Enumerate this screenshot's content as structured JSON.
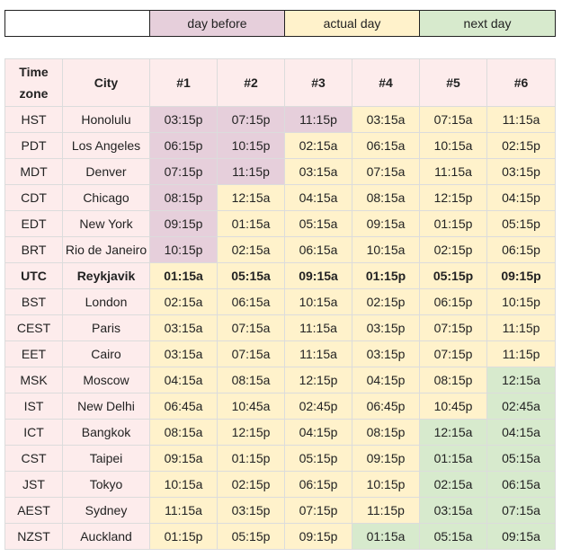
{
  "legend": {
    "blank": "",
    "day_before": "day before",
    "actual_day": "actual day",
    "next_day": "next day"
  },
  "colors": {
    "day_before": "#e6cfdb",
    "actual_day": "#fff2cb",
    "next_day": "#d7eacd",
    "header_row_bg": "#fdecec"
  },
  "table": {
    "headers": [
      "Time zone",
      "City",
      "#1",
      "#2",
      "#3",
      "#4",
      "#5",
      "#6"
    ],
    "rows": [
      {
        "tz": "HST",
        "city": "Honolulu",
        "times": [
          "03:15p",
          "07:15p",
          "11:15p",
          "03:15a",
          "07:15a",
          "11:15a"
        ],
        "days": [
          "before",
          "before",
          "before",
          "actual",
          "actual",
          "actual"
        ]
      },
      {
        "tz": "PDT",
        "city": "Los Angeles",
        "times": [
          "06:15p",
          "10:15p",
          "02:15a",
          "06:15a",
          "10:15a",
          "02:15p"
        ],
        "days": [
          "before",
          "before",
          "actual",
          "actual",
          "actual",
          "actual"
        ]
      },
      {
        "tz": "MDT",
        "city": "Denver",
        "times": [
          "07:15p",
          "11:15p",
          "03:15a",
          "07:15a",
          "11:15a",
          "03:15p"
        ],
        "days": [
          "before",
          "before",
          "actual",
          "actual",
          "actual",
          "actual"
        ]
      },
      {
        "tz": "CDT",
        "city": "Chicago",
        "times": [
          "08:15p",
          "12:15a",
          "04:15a",
          "08:15a",
          "12:15p",
          "04:15p"
        ],
        "days": [
          "before",
          "actual",
          "actual",
          "actual",
          "actual",
          "actual"
        ]
      },
      {
        "tz": "EDT",
        "city": "New York",
        "times": [
          "09:15p",
          "01:15a",
          "05:15a",
          "09:15a",
          "01:15p",
          "05:15p"
        ],
        "days": [
          "before",
          "actual",
          "actual",
          "actual",
          "actual",
          "actual"
        ]
      },
      {
        "tz": "BRT",
        "city": "Rio de Janeiro",
        "times": [
          "10:15p",
          "02:15a",
          "06:15a",
          "10:15a",
          "02:15p",
          "06:15p"
        ],
        "days": [
          "before",
          "actual",
          "actual",
          "actual",
          "actual",
          "actual"
        ]
      },
      {
        "tz": "UTC",
        "city": "Reykjavik",
        "times": [
          "01:15a",
          "05:15a",
          "09:15a",
          "01:15p",
          "05:15p",
          "09:15p"
        ],
        "days": [
          "actual",
          "actual",
          "actual",
          "actual",
          "actual",
          "actual"
        ],
        "reference": true
      },
      {
        "tz": "BST",
        "city": "London",
        "times": [
          "02:15a",
          "06:15a",
          "10:15a",
          "02:15p",
          "06:15p",
          "10:15p"
        ],
        "days": [
          "actual",
          "actual",
          "actual",
          "actual",
          "actual",
          "actual"
        ]
      },
      {
        "tz": "CEST",
        "city": "Paris",
        "times": [
          "03:15a",
          "07:15a",
          "11:15a",
          "03:15p",
          "07:15p",
          "11:15p"
        ],
        "days": [
          "actual",
          "actual",
          "actual",
          "actual",
          "actual",
          "actual"
        ]
      },
      {
        "tz": "EET",
        "city": "Cairo",
        "times": [
          "03:15a",
          "07:15a",
          "11:15a",
          "03:15p",
          "07:15p",
          "11:15p"
        ],
        "days": [
          "actual",
          "actual",
          "actual",
          "actual",
          "actual",
          "actual"
        ]
      },
      {
        "tz": "MSK",
        "city": "Moscow",
        "times": [
          "04:15a",
          "08:15a",
          "12:15p",
          "04:15p",
          "08:15p",
          "12:15a"
        ],
        "days": [
          "actual",
          "actual",
          "actual",
          "actual",
          "actual",
          "next"
        ]
      },
      {
        "tz": "IST",
        "city": "New Delhi",
        "times": [
          "06:45a",
          "10:45a",
          "02:45p",
          "06:45p",
          "10:45p",
          "02:45a"
        ],
        "days": [
          "actual",
          "actual",
          "actual",
          "actual",
          "actual",
          "next"
        ]
      },
      {
        "tz": "ICT",
        "city": "Bangkok",
        "times": [
          "08:15a",
          "12:15p",
          "04:15p",
          "08:15p",
          "12:15a",
          "04:15a"
        ],
        "days": [
          "actual",
          "actual",
          "actual",
          "actual",
          "next",
          "next"
        ]
      },
      {
        "tz": "CST",
        "city": "Taipei",
        "times": [
          "09:15a",
          "01:15p",
          "05:15p",
          "09:15p",
          "01:15a",
          "05:15a"
        ],
        "days": [
          "actual",
          "actual",
          "actual",
          "actual",
          "next",
          "next"
        ]
      },
      {
        "tz": "JST",
        "city": "Tokyo",
        "times": [
          "10:15a",
          "02:15p",
          "06:15p",
          "10:15p",
          "02:15a",
          "06:15a"
        ],
        "days": [
          "actual",
          "actual",
          "actual",
          "actual",
          "next",
          "next"
        ]
      },
      {
        "tz": "AEST",
        "city": "Sydney",
        "times": [
          "11:15a",
          "03:15p",
          "07:15p",
          "11:15p",
          "03:15a",
          "07:15a"
        ],
        "days": [
          "actual",
          "actual",
          "actual",
          "actual",
          "next",
          "next"
        ]
      },
      {
        "tz": "NZST",
        "city": "Auckland",
        "times": [
          "01:15p",
          "05:15p",
          "09:15p",
          "01:15a",
          "05:15a",
          "09:15a"
        ],
        "days": [
          "actual",
          "actual",
          "actual",
          "next",
          "next",
          "next"
        ]
      }
    ]
  }
}
